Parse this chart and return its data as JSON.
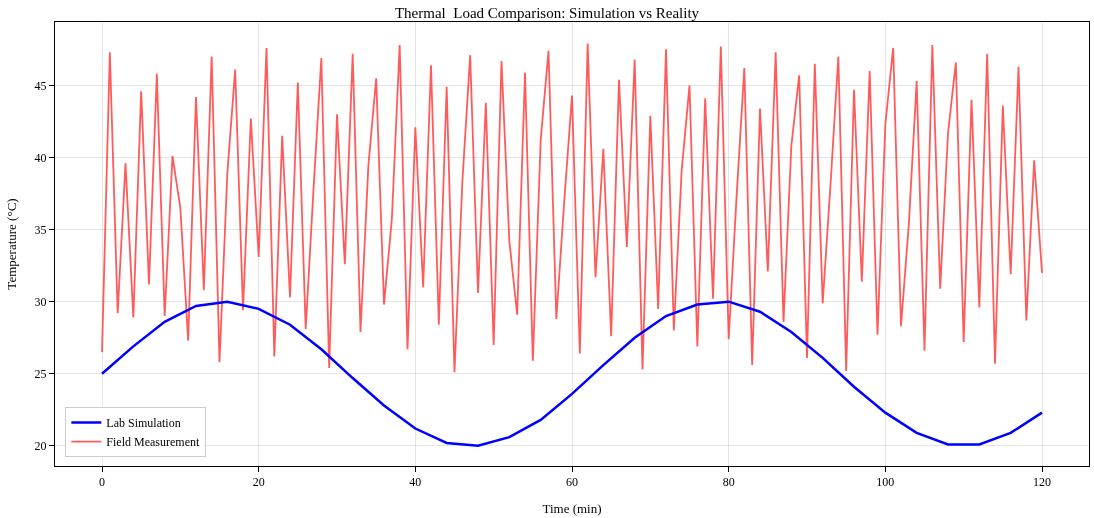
{
  "chart_data": {
    "type": "line",
    "title": "Thermal  Load Comparison: Simulation vs Reality",
    "xlabel": "Time (min)",
    "ylabel": "Temperature (°C)",
    "xlim": [
      -6,
      126
    ],
    "xticks": [
      0,
      20,
      40,
      60,
      80,
      100,
      120
    ],
    "ylim": [
      18.6,
      49.4
    ],
    "yticks": [
      20,
      25,
      30,
      35,
      40,
      45
    ],
    "grid": true,
    "legend": "bottom left",
    "line_style": "solid",
    "marker": "none",
    "series": [
      {
        "name": "Field Measurement",
        "color": "#ff4a4a",
        "x": [
          0,
          1,
          2,
          3,
          4,
          5,
          6,
          7,
          8,
          9,
          10,
          11,
          12,
          13,
          14,
          15,
          16,
          17,
          18,
          19,
          20,
          21,
          22,
          23,
          24,
          25,
          26,
          27,
          28,
          29,
          30,
          31,
          32,
          33,
          34,
          35,
          36,
          37,
          38,
          39,
          40,
          41,
          42,
          43,
          44,
          45,
          46,
          47,
          48,
          49,
          50,
          51,
          52,
          53,
          54,
          55,
          56,
          57,
          58,
          59,
          60,
          61,
          62,
          63,
          64,
          65,
          66,
          67,
          68,
          69,
          70,
          71,
          72,
          73,
          74,
          75,
          76,
          77,
          78,
          79,
          80,
          81,
          82,
          83,
          84,
          85,
          86,
          87,
          88,
          89,
          90,
          91,
          92,
          93,
          94,
          95,
          96,
          97,
          98,
          99,
          100,
          101,
          102,
          103,
          104,
          105,
          106,
          107,
          108,
          109,
          110,
          111,
          112,
          113,
          114,
          115,
          116,
          117,
          118,
          119,
          120
        ],
        "values": [
          26.5,
          47.3,
          29.2,
          39.6,
          28.9,
          44.6,
          31.2,
          45.8,
          29.0,
          40.1,
          36.5,
          27.3,
          44.2,
          30.8,
          47.0,
          25.8,
          38.9,
          46.1,
          29.4,
          42.7,
          33.1,
          47.6,
          26.2,
          41.5,
          30.3,
          45.2,
          28.1,
          37.8,
          46.9,
          25.4,
          43.0,
          32.6,
          47.2,
          27.9,
          39.4,
          45.5,
          29.8,
          35.7,
          47.8,
          26.7,
          42.1,
          31.0,
          46.4,
          28.4,
          44.9,
          25.1,
          38.3,
          47.1,
          30.6,
          43.8,
          27.0,
          46.7,
          34.2,
          29.1,
          45.9,
          25.9,
          41.2,
          47.4,
          28.8,
          36.9,
          44.3,
          26.4,
          47.9,
          31.7,
          40.6,
          27.6,
          45.4,
          33.8,
          46.8,
          25.3,
          42.9,
          29.5,
          47.5,
          28.0,
          39.1,
          45.0,
          26.9,
          44.1,
          30.2,
          47.7,
          27.4,
          37.2,
          46.2,
          25.6,
          43.4,
          32.1,
          47.3,
          28.6,
          40.8,
          45.7,
          26.1,
          46.5,
          29.9,
          38.1,
          47.0,
          25.2,
          44.7,
          31.4,
          46.0,
          27.7,
          42.3,
          47.6,
          28.3,
          35.4,
          45.3,
          26.6,
          47.8,
          30.9,
          41.7,
          46.6,
          27.2,
          44.0,
          29.6,
          47.2,
          25.7,
          43.6,
          31.9,
          46.3,
          28.7,
          39.8,
          32.0
        ]
      },
      {
        "name": "Lab Simulation",
        "color": "#0000ff",
        "x": [
          0,
          4,
          8,
          12,
          16,
          20,
          24,
          28,
          32,
          36,
          40,
          44,
          48,
          52,
          56,
          60,
          64,
          68,
          72,
          76,
          80,
          84,
          88,
          92,
          96,
          100,
          104,
          108,
          112,
          116,
          120
        ],
        "values": [
          25.0,
          26.9,
          28.6,
          29.7,
          30.0,
          29.5,
          28.4,
          26.7,
          24.7,
          22.8,
          21.2,
          20.2,
          20.0,
          20.6,
          21.8,
          23.6,
          25.6,
          27.5,
          29.0,
          29.8,
          30.0,
          29.3,
          27.9,
          26.1,
          24.1,
          22.3,
          20.9,
          20.1,
          20.1,
          20.9,
          22.3
        ]
      }
    ]
  }
}
